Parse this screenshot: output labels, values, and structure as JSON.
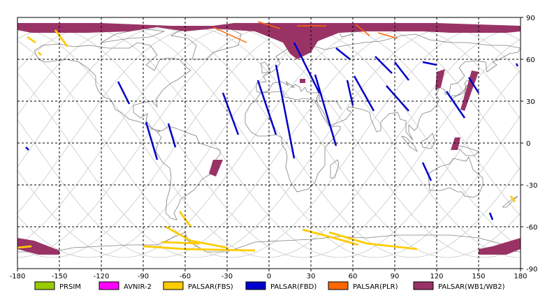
{
  "map": {
    "lon_range": [
      -180,
      180
    ],
    "lat_range": [
      -90,
      90
    ],
    "x_ticks": [
      "-180",
      "-150",
      "-120",
      "-90",
      "-60",
      "-30",
      "0",
      "30",
      "60",
      "90",
      "120",
      "150",
      "180"
    ],
    "y_ticks": [
      "90",
      "60",
      "30",
      "0",
      "-30",
      "-60",
      "-90"
    ],
    "grid": "dashed",
    "orbit_tracks": "gray sinusoidal ground tracks"
  },
  "legend": [
    {
      "label": "PRSIM",
      "color": "#99cc00"
    },
    {
      "label": "AVNIR-2",
      "color": "#ff00ff"
    },
    {
      "label": "PALSAR(FBS)",
      "color": "#ffcc00"
    },
    {
      "label": "PALSAR(FBD)",
      "color": "#0000cc"
    },
    {
      "label": "PALSAR(PLR)",
      "color": "#ff6600"
    },
    {
      "label": "PALSAR(WB1/WB2)",
      "color": "#993366"
    }
  ],
  "colors": {
    "grid": "#000000",
    "coast": "#808080",
    "orbit": "#c8c8c8"
  }
}
